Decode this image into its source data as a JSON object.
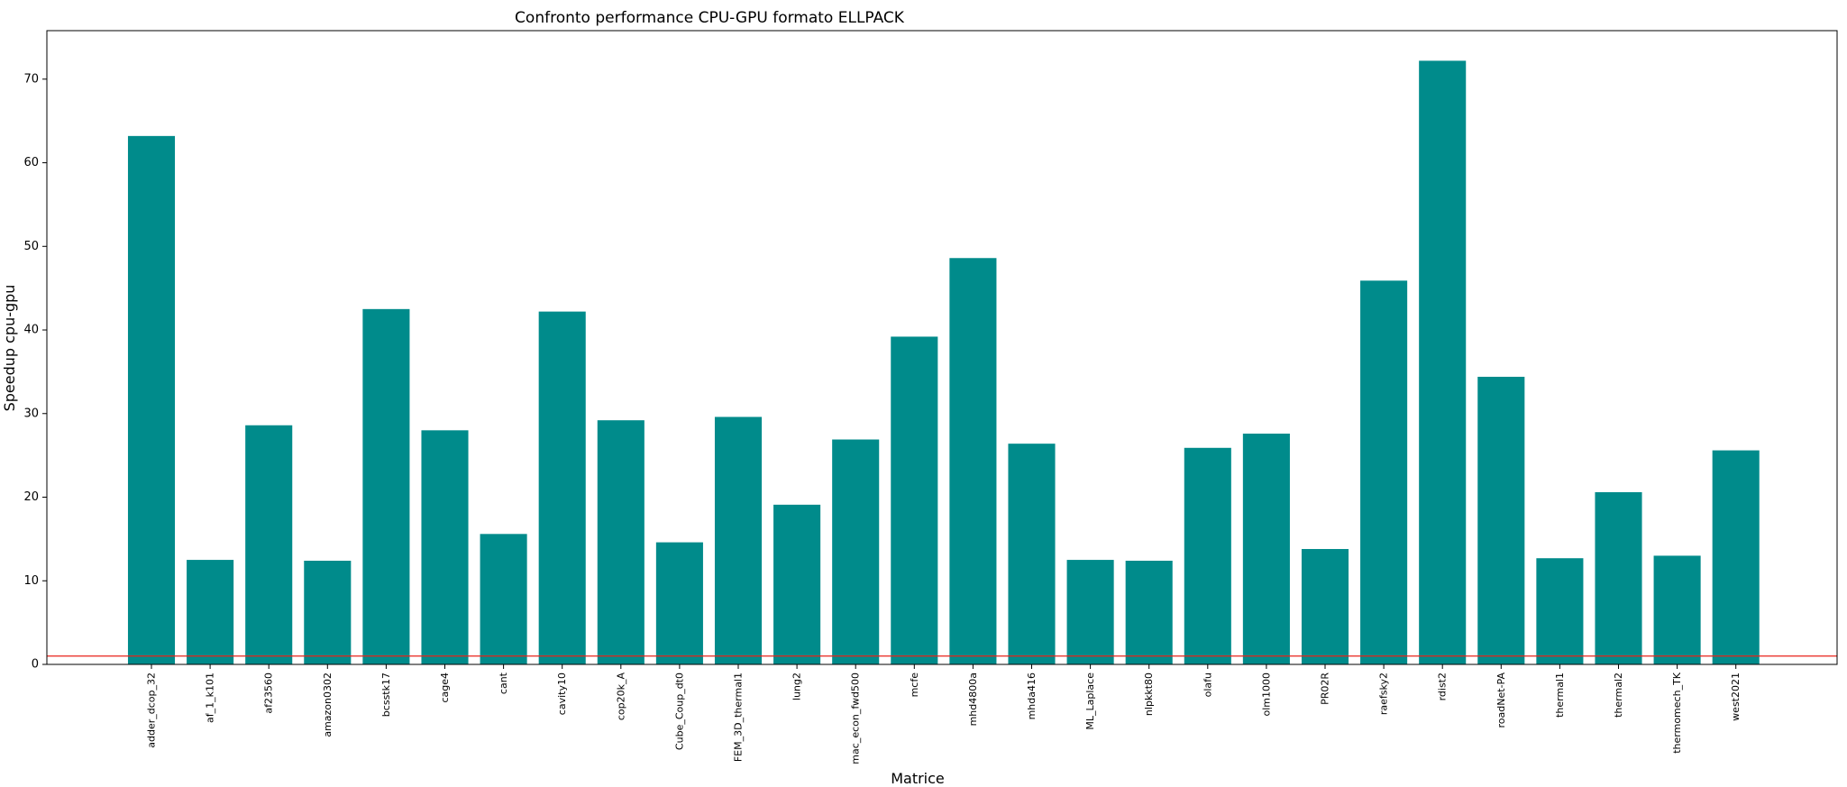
{
  "chart_data": {
    "type": "bar",
    "title": "Confronto performance CPU-GPU formato ELLPACK",
    "xlabel": "Matrice",
    "ylabel": "Speedup cpu-gpu",
    "categories": [
      "adder_dcop_32",
      "af_1_k101",
      "af23560",
      "amazon0302",
      "bcsstk17",
      "cage4",
      "cant",
      "cavity10",
      "cop20k_A",
      "Cube_Coup_dt0",
      "FEM_3D_thermal1",
      "lung2",
      "mac_econ_fwd500",
      "mcfe",
      "mhd4800a",
      "mhda416",
      "ML_Laplace",
      "nlpkkt80",
      "olafu",
      "olm1000",
      "PR02R",
      "raefsky2",
      "rdist2",
      "roadNet-PA",
      "thermal1",
      "thermal2",
      "thermomech_TK",
      "west2021"
    ],
    "values": [
      63.2,
      12.5,
      28.6,
      12.4,
      42.5,
      28.0,
      15.6,
      42.2,
      29.2,
      14.6,
      29.6,
      19.1,
      26.9,
      39.2,
      48.6,
      26.4,
      12.5,
      12.4,
      25.9,
      27.6,
      13.8,
      45.9,
      72.2,
      34.4,
      12.7,
      20.6,
      13.0,
      25.6
    ],
    "ylim": [
      0,
      75.8
    ],
    "yticks": [
      0,
      10,
      20,
      30,
      40,
      50,
      60,
      70
    ],
    "reference_line": 1,
    "bar_color": "#008b8b",
    "reference_color": "#e8231a",
    "grid": false,
    "legend": "none"
  }
}
